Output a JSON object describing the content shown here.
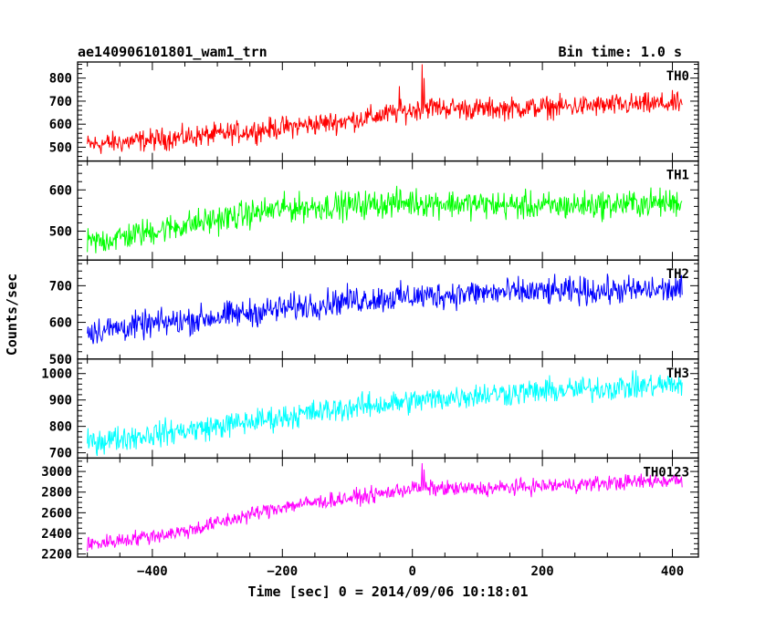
{
  "chart_data": {
    "type": "line",
    "title_left": "ae140906101801_wam1_trn",
    "title_right": "Bin time: 1.0 s",
    "xlabel": "Time [sec] 0 = 2014/09/06 10:18:01",
    "ylabel": "Counts/sec",
    "xlim": [
      -515,
      440
    ],
    "x_range": [
      -500,
      415
    ],
    "x_ticks": [
      -400,
      -200,
      0,
      200,
      400
    ],
    "x_tick_labels": [
      "−400",
      "−200",
      "0",
      "200",
      "400"
    ],
    "grid": false,
    "series": [
      {
        "name": "TH0",
        "color": "#ff0000",
        "ylim": [
          440,
          870
        ],
        "y_ticks": [
          500,
          600,
          700,
          800
        ],
        "trend": [
          [
            -500,
            510
          ],
          [
            -300,
            555
          ],
          [
            -100,
            615
          ],
          [
            0,
            660
          ],
          [
            20,
            675
          ],
          [
            100,
            665
          ],
          [
            415,
            690
          ]
        ],
        "noise": 38,
        "spikes": [
          [
            15,
            860
          ],
          [
            18,
            800
          ],
          [
            -20,
            765
          ]
        ]
      },
      {
        "name": "TH1",
        "color": "#00ff00",
        "ylim": [
          430,
          670
        ],
        "y_ticks": [
          500,
          600
        ],
        "trend": [
          [
            -500,
            470
          ],
          [
            -350,
            515
          ],
          [
            -200,
            555
          ],
          [
            0,
            570
          ],
          [
            200,
            560
          ],
          [
            415,
            570
          ]
        ],
        "noise": 27,
        "spikes": []
      },
      {
        "name": "TH2",
        "color": "#0000ff",
        "ylim": [
          500,
          770
        ],
        "y_ticks": [
          500,
          600,
          700
        ],
        "trend": [
          [
            -500,
            575
          ],
          [
            -300,
            615
          ],
          [
            -100,
            660
          ],
          [
            100,
            680
          ],
          [
            415,
            690
          ]
        ],
        "noise": 30,
        "spikes": []
      },
      {
        "name": "TH3",
        "color": "#00ffff",
        "ylim": [
          680,
          1055
        ],
        "y_ticks": [
          700,
          800,
          900,
          1000
        ],
        "trend": [
          [
            -500,
            740
          ],
          [
            -300,
            800
          ],
          [
            -100,
            870
          ],
          [
            100,
            920
          ],
          [
            415,
            960
          ]
        ],
        "noise": 38,
        "spikes": []
      },
      {
        "name": "TH0123",
        "color": "#ff00ff",
        "ylim": [
          2170,
          3130
        ],
        "y_ticks": [
          2200,
          2400,
          2600,
          2800,
          3000
        ],
        "trend": [
          [
            -500,
            2290
          ],
          [
            -350,
            2420
          ],
          [
            -200,
            2660
          ],
          [
            -50,
            2780
          ],
          [
            0,
            2840
          ],
          [
            100,
            2830
          ],
          [
            415,
            2920
          ]
        ],
        "noise": 60,
        "spikes": [
          [
            15,
            3080
          ],
          [
            18,
            3020
          ]
        ]
      }
    ]
  }
}
